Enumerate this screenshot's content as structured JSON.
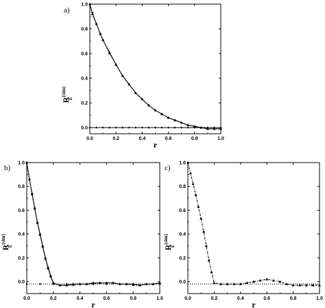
{
  "chart_data": [
    {
      "panel_label": "a)",
      "type": "line",
      "xlabel": "r",
      "ylabel": {
        "main": "R",
        "sup": "(sim)",
        "sub": "E"
      },
      "xlim": [
        0.0,
        1.0
      ],
      "ylim": [
        -0.05,
        1.0
      ],
      "xticks": [
        "0.0",
        "0.2",
        "0.4",
        "0.6",
        "0.8",
        "1.0"
      ],
      "yticks": [
        "0.0",
        "0.2",
        "0.4",
        "0.6",
        "0.8",
        "1.0"
      ],
      "xtick_values": [
        0,
        0.2,
        0.4,
        0.6,
        0.8,
        1.0
      ],
      "ytick_values": [
        0,
        0.2,
        0.4,
        0.6,
        0.8,
        1.0
      ],
      "grid": false,
      "series": [
        {
          "style": "solid",
          "marker": "triangle",
          "x": [
            0,
            0.02,
            0.05,
            0.08,
            0.1,
            0.15,
            0.2,
            0.25,
            0.3,
            0.35,
            0.4,
            0.45,
            0.5,
            0.55,
            0.6,
            0.65,
            0.7,
            0.75,
            0.8,
            0.85,
            0.9,
            0.95,
            1.0
          ],
          "y": [
            1.0,
            0.92,
            0.84,
            0.76,
            0.71,
            0.61,
            0.51,
            0.42,
            0.35,
            0.28,
            0.23,
            0.18,
            0.14,
            0.11,
            0.08,
            0.06,
            0.04,
            0.02,
            0.01,
            0.0,
            -0.01,
            -0.01,
            -0.01
          ]
        },
        {
          "style": "dotted",
          "marker": "diamond",
          "x": [
            0,
            0.02,
            0.05,
            0.08,
            0.1,
            0.15,
            0.2,
            0.25,
            0.3,
            0.35,
            0.4,
            0.45,
            0.5,
            0.55,
            0.6,
            0.65,
            0.7,
            0.75,
            0.8,
            0.85,
            0.9,
            0.95,
            1.0
          ],
          "y": [
            1.0,
            0.93,
            0.84,
            0.76,
            0.71,
            0.6,
            0.51,
            0.42,
            0.35,
            0.28,
            0.23,
            0.18,
            0.14,
            0.11,
            0.08,
            0.06,
            0.04,
            0.02,
            0.01,
            0.0,
            -0.01,
            -0.01,
            -0.01
          ]
        },
        {
          "style": "solid",
          "marker": "diamond",
          "x": [
            0,
            0.05,
            0.1,
            0.15,
            0.2,
            0.25,
            0.3,
            0.35,
            0.4,
            0.45,
            0.5,
            0.55,
            0.6,
            0.65,
            0.7,
            0.75,
            0.8,
            0.85,
            0.9,
            0.95,
            1.0
          ],
          "y": [
            0,
            0,
            0,
            0,
            0,
            0,
            0,
            0,
            0,
            0,
            0,
            0,
            0,
            0,
            0,
            0,
            0,
            0,
            0,
            0,
            0
          ]
        }
      ]
    },
    {
      "panel_label": "b)",
      "type": "line",
      "xlabel": "r",
      "ylabel": {
        "main": "R",
        "sup": "(sim)",
        "sub": "E"
      },
      "xlim": [
        0.0,
        1.0
      ],
      "ylim": [
        -0.1,
        1.0
      ],
      "xticks": [
        "0.0",
        "0.2",
        "0.4",
        "0.6",
        "0.8",
        "1.0"
      ],
      "yticks": [
        "0.0",
        "0.2",
        "0.4",
        "0.6",
        "0.8",
        "1.0"
      ],
      "xtick_values": [
        0,
        0.2,
        0.4,
        0.6,
        0.8,
        1.0
      ],
      "ytick_values": [
        0,
        0.2,
        0.4,
        0.6,
        0.8,
        1.0
      ],
      "grid": false,
      "series": [
        {
          "style": "solid",
          "marker": "triangle",
          "x": [
            0,
            0.02,
            0.04,
            0.06,
            0.08,
            0.1,
            0.12,
            0.14,
            0.16,
            0.18,
            0.2,
            0.25,
            0.3,
            0.35,
            0.4,
            0.45,
            0.5,
            0.55,
            0.6,
            0.65,
            0.7,
            0.75,
            0.8,
            0.85,
            0.9,
            0.95,
            1.0
          ],
          "y": [
            1.0,
            0.86,
            0.74,
            0.62,
            0.5,
            0.4,
            0.3,
            0.2,
            0.12,
            0.05,
            -0.01,
            -0.03,
            -0.03,
            -0.02,
            -0.02,
            -0.02,
            -0.01,
            -0.01,
            -0.01,
            -0.01,
            -0.02,
            -0.02,
            -0.02,
            -0.03,
            -0.02,
            -0.02,
            -0.01
          ]
        },
        {
          "style": "dotted",
          "marker": "diamond",
          "x": [
            0,
            0.02,
            0.04,
            0.06,
            0.08,
            0.1,
            0.12,
            0.14,
            0.16,
            0.18,
            0.2,
            0.25,
            0.3,
            0.35,
            0.4,
            0.45,
            0.5,
            0.55,
            0.6,
            0.65,
            0.7,
            0.75,
            0.8,
            0.85,
            0.9,
            0.95,
            1.0
          ],
          "y": [
            1.0,
            0.86,
            0.73,
            0.61,
            0.49,
            0.39,
            0.29,
            0.19,
            0.11,
            0.04,
            -0.02,
            -0.03,
            -0.03,
            -0.03,
            -0.02,
            -0.02,
            -0.02,
            -0.01,
            -0.01,
            -0.01,
            -0.02,
            -0.02,
            -0.03,
            -0.03,
            -0.02,
            -0.02,
            -0.02
          ]
        },
        {
          "style": "dotted",
          "marker": "diamond",
          "x": [
            0,
            0.1,
            0.2,
            0.3,
            0.4,
            0.5,
            0.6,
            0.7,
            0.8,
            0.9,
            1.0
          ],
          "y": [
            -0.02,
            -0.02,
            -0.02,
            -0.02,
            -0.02,
            -0.02,
            -0.02,
            -0.02,
            -0.02,
            -0.02,
            -0.02
          ]
        }
      ]
    },
    {
      "panel_label": "c)",
      "type": "line",
      "xlabel": "r",
      "ylabel": {
        "main": "R",
        "sup": "(sim)",
        "sub": "E"
      },
      "xlim": [
        0.0,
        1.0
      ],
      "ylim": [
        -0.1,
        1.0
      ],
      "xticks": [
        "0.0",
        "0.2",
        "0.4",
        "0.6",
        "0.8",
        "1.0"
      ],
      "yticks": [
        "0.0",
        "0.2",
        "0.4",
        "0.6",
        "0.8",
        "1.0"
      ],
      "xtick_values": [
        0,
        0.2,
        0.4,
        0.6,
        0.8,
        1.0
      ],
      "ytick_values": [
        0,
        0.2,
        0.4,
        0.6,
        0.8,
        1.0
      ],
      "grid": false,
      "series": [
        {
          "style": "dashdot",
          "marker": "triangle",
          "x": [
            0,
            0.02,
            0.04,
            0.06,
            0.08,
            0.1,
            0.12,
            0.14,
            0.16,
            0.18,
            0.2,
            0.25,
            0.3,
            0.35,
            0.4,
            0.45,
            0.5,
            0.55,
            0.6,
            0.65,
            0.7,
            0.75,
            0.8,
            0.85,
            0.9,
            0.95,
            1.0
          ],
          "y": [
            1.0,
            0.91,
            0.82,
            0.73,
            0.63,
            0.53,
            0.42,
            0.3,
            0.18,
            0.08,
            -0.01,
            -0.02,
            -0.02,
            -0.02,
            -0.02,
            -0.01,
            0.0,
            0.01,
            0.02,
            0.01,
            0.0,
            -0.02,
            -0.03,
            -0.03,
            -0.03,
            -0.03,
            -0.03
          ]
        },
        {
          "style": "dotted",
          "marker": "none",
          "x": [
            0,
            0.2,
            1.0
          ],
          "y": [
            -0.02,
            -0.02,
            -0.02
          ]
        }
      ]
    }
  ]
}
